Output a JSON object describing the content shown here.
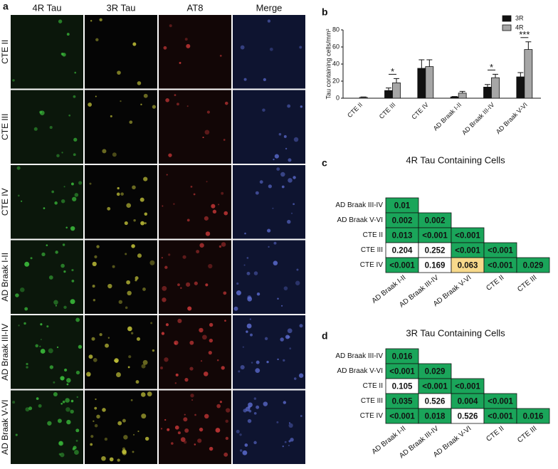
{
  "panel_a": {
    "label": "a",
    "columns": [
      "4R Tau",
      "3R Tau",
      "AT8",
      "Merge"
    ],
    "rows": [
      "CTE II",
      "CTE III",
      "CTE IV",
      "AD Braak I-II",
      "AD Braak III-IV",
      "AD Braak V-VI"
    ]
  },
  "chart_data": {
    "type": "bar",
    "label": "b",
    "ylabel": "Tau containing cells/mm²",
    "categories": [
      "CTE II",
      "CTE III",
      "CTE IV",
      "AD Braak I-II",
      "AD Braak III-IV",
      "AD Braak V-VI"
    ],
    "series": [
      {
        "name": "3R",
        "color": "#111111",
        "values": [
          0,
          9,
          35,
          1.5,
          13,
          25
        ],
        "errors": [
          0,
          3,
          10,
          0.5,
          3,
          5
        ]
      },
      {
        "name": "4R",
        "color": "#a6a6a6",
        "values": [
          1,
          18,
          37,
          6,
          24,
          57
        ],
        "errors": [
          0.5,
          5,
          8,
          2,
          4,
          9
        ]
      }
    ],
    "ylim": [
      0,
      80
    ],
    "yticks": [
      0,
      20,
      40,
      60,
      80
    ],
    "legend": "top-right",
    "annotations": [
      {
        "text": "*",
        "category": "CTE III"
      },
      {
        "text": "*",
        "category": "AD Braak III-IV"
      },
      {
        "text": "***",
        "category": "AD Braak V-VI"
      }
    ]
  },
  "matrices": [
    {
      "label": "c",
      "title": "4R Tau Containing Cells",
      "rows": [
        "AD Braak III-IV",
        "AD Braak V-VI",
        "CTE II",
        "CTE III",
        "CTE IV"
      ],
      "columns": [
        "AD Braak I-II",
        "AD Braak III-IV",
        "AD Braak V-VI",
        "CTE II",
        "CTE III"
      ],
      "cells": [
        [
          {
            "text": "0.01",
            "color": "#1aa55a"
          }
        ],
        [
          {
            "text": "0.002",
            "color": "#1aa55a"
          },
          {
            "text": "0.002",
            "color": "#1aa55a"
          }
        ],
        [
          {
            "text": "0.013",
            "color": "#1aa55a"
          },
          {
            "text": "<0.001",
            "color": "#1aa55a"
          },
          {
            "text": "<0.001",
            "color": "#1aa55a"
          }
        ],
        [
          {
            "text": "0.204",
            "color": "#ffffff"
          },
          {
            "text": "0.252",
            "color": "#ffffff"
          },
          {
            "text": "<0.001",
            "color": "#1aa55a"
          },
          {
            "text": "<0.001",
            "color": "#1aa55a"
          }
        ],
        [
          {
            "text": "<0.001",
            "color": "#1aa55a"
          },
          {
            "text": "0.169",
            "color": "#ffffff"
          },
          {
            "text": "0.063",
            "color": "#f7d98b"
          },
          {
            "text": "<0.001",
            "color": "#1aa55a"
          },
          {
            "text": "0.029",
            "color": "#1aa55a"
          }
        ]
      ]
    },
    {
      "label": "d",
      "title": "3R Tau Containing Cells",
      "rows": [
        "AD Braak III-IV",
        "AD Braak V-VI",
        "CTE II",
        "CTE III",
        "CTE IV"
      ],
      "columns": [
        "AD Braak I-II",
        "AD Braak III-IV",
        "AD Braak V-VI",
        "CTE II",
        "CTE III"
      ],
      "cells": [
        [
          {
            "text": "0.016",
            "color": "#1aa55a"
          }
        ],
        [
          {
            "text": "<0.001",
            "color": "#1aa55a"
          },
          {
            "text": "0.029",
            "color": "#1aa55a"
          }
        ],
        [
          {
            "text": "0.105",
            "color": "#ffffff"
          },
          {
            "text": "<0.001",
            "color": "#1aa55a"
          },
          {
            "text": "<0.001",
            "color": "#1aa55a"
          }
        ],
        [
          {
            "text": "0.035",
            "color": "#1aa55a"
          },
          {
            "text": "0.526",
            "color": "#ffffff"
          },
          {
            "text": "0.004",
            "color": "#1aa55a"
          },
          {
            "text": "<0.001",
            "color": "#1aa55a"
          }
        ],
        [
          {
            "text": "<0.001",
            "color": "#1aa55a"
          },
          {
            "text": "0.018",
            "color": "#1aa55a"
          },
          {
            "text": "0.526",
            "color": "#ffffff"
          },
          {
            "text": "<0.001",
            "color": "#1aa55a"
          },
          {
            "text": "0.016",
            "color": "#1aa55a"
          }
        ]
      ]
    }
  ]
}
